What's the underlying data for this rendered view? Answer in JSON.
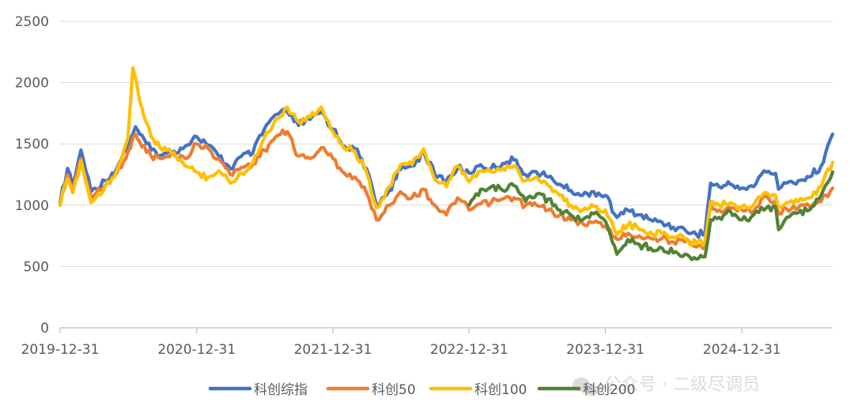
{
  "chart_data": {
    "type": "line",
    "title": "",
    "xlabel": "",
    "ylabel": "",
    "ylim": [
      0,
      2500
    ],
    "yticks": [
      "0",
      "500",
      "1000",
      "1500",
      "2000",
      "2500"
    ],
    "xtick_labels": [
      "2019-12-31",
      "2020-12-31",
      "2021-12-31",
      "2022-12-31",
      "2023-12-31",
      "2024-12-31"
    ],
    "x_range": [
      "2019-12-31",
      "2025-08-31"
    ],
    "grid": "horizontal",
    "legend_position": "bottom",
    "series": [
      {
        "name": "科创综指",
        "color": "#4472C4",
        "points": [
          [
            "2019-12-31",
            1020
          ],
          [
            "2020-01-20",
            1300
          ],
          [
            "2020-02-03",
            1150
          ],
          [
            "2020-02-25",
            1450
          ],
          [
            "2020-03-23",
            1110
          ],
          [
            "2020-04-30",
            1200
          ],
          [
            "2020-05-31",
            1300
          ],
          [
            "2020-06-30",
            1500
          ],
          [
            "2020-07-20",
            1640
          ],
          [
            "2020-07-31",
            1580
          ],
          [
            "2020-08-31",
            1450
          ],
          [
            "2020-09-30",
            1410
          ],
          [
            "2020-10-31",
            1440
          ],
          [
            "2020-11-30",
            1480
          ],
          [
            "2020-12-31",
            1560
          ],
          [
            "2021-01-31",
            1490
          ],
          [
            "2021-02-28",
            1400
          ],
          [
            "2021-03-31",
            1300
          ],
          [
            "2021-04-30",
            1400
          ],
          [
            "2021-05-31",
            1430
          ],
          [
            "2021-06-30",
            1620
          ],
          [
            "2021-07-31",
            1740
          ],
          [
            "2021-08-31",
            1760
          ],
          [
            "2021-09-30",
            1650
          ],
          [
            "2021-10-31",
            1700
          ],
          [
            "2021-11-30",
            1760
          ],
          [
            "2021-12-31",
            1620
          ],
          [
            "2022-01-31",
            1480
          ],
          [
            "2022-02-28",
            1460
          ],
          [
            "2022-03-31",
            1300
          ],
          [
            "2022-04-27",
            1000
          ],
          [
            "2022-05-31",
            1120
          ],
          [
            "2022-06-30",
            1290
          ],
          [
            "2022-07-31",
            1320
          ],
          [
            "2022-08-31",
            1440
          ],
          [
            "2022-09-30",
            1250
          ],
          [
            "2022-10-31",
            1200
          ],
          [
            "2022-11-30",
            1300
          ],
          [
            "2022-12-31",
            1260
          ],
          [
            "2023-01-31",
            1330
          ],
          [
            "2023-02-28",
            1300
          ],
          [
            "2023-03-31",
            1340
          ],
          [
            "2023-04-30",
            1370
          ],
          [
            "2023-05-31",
            1250
          ],
          [
            "2023-06-30",
            1270
          ],
          [
            "2023-07-31",
            1230
          ],
          [
            "2023-08-31",
            1170
          ],
          [
            "2023-09-30",
            1120
          ],
          [
            "2023-10-31",
            1080
          ],
          [
            "2023-11-30",
            1110
          ],
          [
            "2023-12-31",
            1080
          ],
          [
            "2024-01-31",
            900
          ],
          [
            "2024-02-29",
            960
          ],
          [
            "2024-03-31",
            920
          ],
          [
            "2024-04-30",
            880
          ],
          [
            "2024-05-31",
            860
          ],
          [
            "2024-06-30",
            820
          ],
          [
            "2024-07-31",
            800
          ],
          [
            "2024-08-31",
            760
          ],
          [
            "2024-09-23",
            780
          ],
          [
            "2024-10-08",
            1180
          ],
          [
            "2024-10-31",
            1150
          ],
          [
            "2024-11-30",
            1170
          ],
          [
            "2024-12-31",
            1140
          ],
          [
            "2025-01-31",
            1150
          ],
          [
            "2025-02-28",
            1280
          ],
          [
            "2025-03-31",
            1260
          ],
          [
            "2025-04-08",
            1130
          ],
          [
            "2025-04-30",
            1180
          ],
          [
            "2025-05-31",
            1200
          ],
          [
            "2025-06-30",
            1230
          ],
          [
            "2025-07-31",
            1320
          ],
          [
            "2025-08-31",
            1580
          ]
        ]
      },
      {
        "name": "科创50",
        "color": "#ED7D31",
        "points": [
          [
            "2019-12-31",
            1000
          ],
          [
            "2020-01-20",
            1250
          ],
          [
            "2020-02-03",
            1120
          ],
          [
            "2020-02-25",
            1380
          ],
          [
            "2020-03-23",
            1060
          ],
          [
            "2020-04-30",
            1160
          ],
          [
            "2020-05-31",
            1260
          ],
          [
            "2020-06-30",
            1440
          ],
          [
            "2020-07-20",
            1580
          ],
          [
            "2020-07-31",
            1520
          ],
          [
            "2020-08-31",
            1400
          ],
          [
            "2020-09-30",
            1380
          ],
          [
            "2020-10-31",
            1410
          ],
          [
            "2020-11-30",
            1380
          ],
          [
            "2020-12-31",
            1500
          ],
          [
            "2021-01-31",
            1460
          ],
          [
            "2021-02-28",
            1380
          ],
          [
            "2021-03-31",
            1250
          ],
          [
            "2021-04-30",
            1310
          ],
          [
            "2021-05-31",
            1340
          ],
          [
            "2021-06-30",
            1450
          ],
          [
            "2021-07-31",
            1560
          ],
          [
            "2021-08-31",
            1600
          ],
          [
            "2021-09-30",
            1400
          ],
          [
            "2021-10-31",
            1380
          ],
          [
            "2021-11-30",
            1470
          ],
          [
            "2021-12-31",
            1380
          ],
          [
            "2022-01-31",
            1260
          ],
          [
            "2022-02-28",
            1230
          ],
          [
            "2022-03-31",
            1100
          ],
          [
            "2022-04-27",
            880
          ],
          [
            "2022-05-31",
            1000
          ],
          [
            "2022-06-30",
            1110
          ],
          [
            "2022-07-31",
            1060
          ],
          [
            "2022-08-31",
            1130
          ],
          [
            "2022-09-30",
            1000
          ],
          [
            "2022-10-31",
            920
          ],
          [
            "2022-11-30",
            1060
          ],
          [
            "2022-12-31",
            960
          ],
          [
            "2023-01-31",
            1010
          ],
          [
            "2023-02-28",
            1020
          ],
          [
            "2023-03-31",
            1050
          ],
          [
            "2023-04-30",
            1060
          ],
          [
            "2023-05-31",
            1000
          ],
          [
            "2023-06-30",
            1000
          ],
          [
            "2023-07-31",
            960
          ],
          [
            "2023-08-31",
            920
          ],
          [
            "2023-09-30",
            880
          ],
          [
            "2023-10-31",
            850
          ],
          [
            "2023-11-30",
            860
          ],
          [
            "2023-12-31",
            830
          ],
          [
            "2024-01-31",
            720
          ],
          [
            "2024-02-29",
            770
          ],
          [
            "2024-03-31",
            750
          ],
          [
            "2024-04-30",
            730
          ],
          [
            "2024-05-31",
            730
          ],
          [
            "2024-06-30",
            700
          ],
          [
            "2024-07-31",
            700
          ],
          [
            "2024-08-31",
            660
          ],
          [
            "2024-09-23",
            680
          ],
          [
            "2024-10-08",
            1000
          ],
          [
            "2024-10-31",
            960
          ],
          [
            "2024-11-30",
            980
          ],
          [
            "2024-12-31",
            960
          ],
          [
            "2025-01-31",
            950
          ],
          [
            "2025-02-28",
            1070
          ],
          [
            "2025-03-31",
            1040
          ],
          [
            "2025-04-08",
            930
          ],
          [
            "2025-04-30",
            970
          ],
          [
            "2025-05-31",
            980
          ],
          [
            "2025-06-30",
            990
          ],
          [
            "2025-07-31",
            1030
          ],
          [
            "2025-08-31",
            1140
          ]
        ]
      },
      {
        "name": "科创100",
        "color": "#FFC000",
        "points": [
          [
            "2019-12-31",
            1000
          ],
          [
            "2020-01-20",
            1220
          ],
          [
            "2020-02-03",
            1100
          ],
          [
            "2020-02-25",
            1360
          ],
          [
            "2020-03-23",
            1020
          ],
          [
            "2020-04-30",
            1150
          ],
          [
            "2020-05-31",
            1280
          ],
          [
            "2020-06-30",
            1550
          ],
          [
            "2020-07-13",
            2120
          ],
          [
            "2020-07-31",
            1850
          ],
          [
            "2020-08-31",
            1560
          ],
          [
            "2020-09-30",
            1450
          ],
          [
            "2020-10-31",
            1430
          ],
          [
            "2020-11-30",
            1320
          ],
          [
            "2020-12-31",
            1270
          ],
          [
            "2021-01-31",
            1230
          ],
          [
            "2021-02-28",
            1280
          ],
          [
            "2021-03-31",
            1180
          ],
          [
            "2021-04-30",
            1260
          ],
          [
            "2021-05-31",
            1350
          ],
          [
            "2021-06-30",
            1550
          ],
          [
            "2021-07-31",
            1700
          ],
          [
            "2021-08-31",
            1800
          ],
          [
            "2021-09-30",
            1680
          ],
          [
            "2021-10-31",
            1720
          ],
          [
            "2021-11-30",
            1800
          ],
          [
            "2021-12-31",
            1600
          ],
          [
            "2022-01-31",
            1460
          ],
          [
            "2022-02-28",
            1440
          ],
          [
            "2022-03-31",
            1270
          ],
          [
            "2022-04-27",
            980
          ],
          [
            "2022-05-31",
            1150
          ],
          [
            "2022-06-30",
            1330
          ],
          [
            "2022-07-31",
            1330
          ],
          [
            "2022-08-31",
            1460
          ],
          [
            "2022-09-30",
            1210
          ],
          [
            "2022-10-31",
            1150
          ],
          [
            "2022-11-30",
            1320
          ],
          [
            "2022-12-31",
            1190
          ],
          [
            "2023-01-31",
            1280
          ],
          [
            "2023-02-28",
            1270
          ],
          [
            "2023-03-31",
            1300
          ],
          [
            "2023-04-30",
            1320
          ],
          [
            "2023-05-31",
            1200
          ],
          [
            "2023-06-30",
            1230
          ],
          [
            "2023-07-31",
            1160
          ],
          [
            "2023-08-31",
            1080
          ],
          [
            "2023-09-30",
            1000
          ],
          [
            "2023-10-31",
            960
          ],
          [
            "2023-11-30",
            990
          ],
          [
            "2023-12-31",
            960
          ],
          [
            "2024-01-31",
            760
          ],
          [
            "2024-02-29",
            840
          ],
          [
            "2024-03-31",
            800
          ],
          [
            "2024-04-30",
            780
          ],
          [
            "2024-05-31",
            770
          ],
          [
            "2024-06-30",
            740
          ],
          [
            "2024-07-31",
            730
          ],
          [
            "2024-08-31",
            690
          ],
          [
            "2024-09-23",
            710
          ],
          [
            "2024-10-08",
            1030
          ],
          [
            "2024-10-31",
            1000
          ],
          [
            "2024-11-30",
            1020
          ],
          [
            "2024-12-31",
            990
          ],
          [
            "2025-01-31",
            1000
          ],
          [
            "2025-02-28",
            1100
          ],
          [
            "2025-03-31",
            1080
          ],
          [
            "2025-04-08",
            980
          ],
          [
            "2025-04-30",
            1020
          ],
          [
            "2025-05-31",
            1030
          ],
          [
            "2025-06-30",
            1060
          ],
          [
            "2025-07-31",
            1150
          ],
          [
            "2025-08-31",
            1350
          ]
        ]
      },
      {
        "name": "科创200",
        "color": "#548235",
        "points": [
          [
            "2022-12-31",
            1000
          ],
          [
            "2023-01-31",
            1130
          ],
          [
            "2023-02-28",
            1150
          ],
          [
            "2023-03-31",
            1120
          ],
          [
            "2023-04-30",
            1160
          ],
          [
            "2023-05-31",
            1030
          ],
          [
            "2023-06-30",
            1090
          ],
          [
            "2023-07-31",
            1050
          ],
          [
            "2023-08-31",
            960
          ],
          [
            "2023-09-30",
            920
          ],
          [
            "2023-10-31",
            880
          ],
          [
            "2023-11-30",
            930
          ],
          [
            "2023-12-31",
            870
          ],
          [
            "2024-01-31",
            600
          ],
          [
            "2024-02-29",
            720
          ],
          [
            "2024-03-31",
            680
          ],
          [
            "2024-04-30",
            650
          ],
          [
            "2024-05-31",
            650
          ],
          [
            "2024-06-30",
            610
          ],
          [
            "2024-07-31",
            600
          ],
          [
            "2024-08-31",
            560
          ],
          [
            "2024-09-23",
            580
          ],
          [
            "2024-10-08",
            880
          ],
          [
            "2024-10-31",
            900
          ],
          [
            "2024-11-30",
            950
          ],
          [
            "2024-12-31",
            880
          ],
          [
            "2025-01-31",
            920
          ],
          [
            "2025-02-28",
            960
          ],
          [
            "2025-03-31",
            990
          ],
          [
            "2025-04-08",
            800
          ],
          [
            "2025-04-30",
            900
          ],
          [
            "2025-05-31",
            940
          ],
          [
            "2025-06-30",
            960
          ],
          [
            "2025-07-31",
            1080
          ],
          [
            "2025-08-31",
            1270
          ]
        ]
      }
    ]
  },
  "watermark": {
    "text": "公众号 · 二级尽调员",
    "icon": "wechat-icon"
  }
}
